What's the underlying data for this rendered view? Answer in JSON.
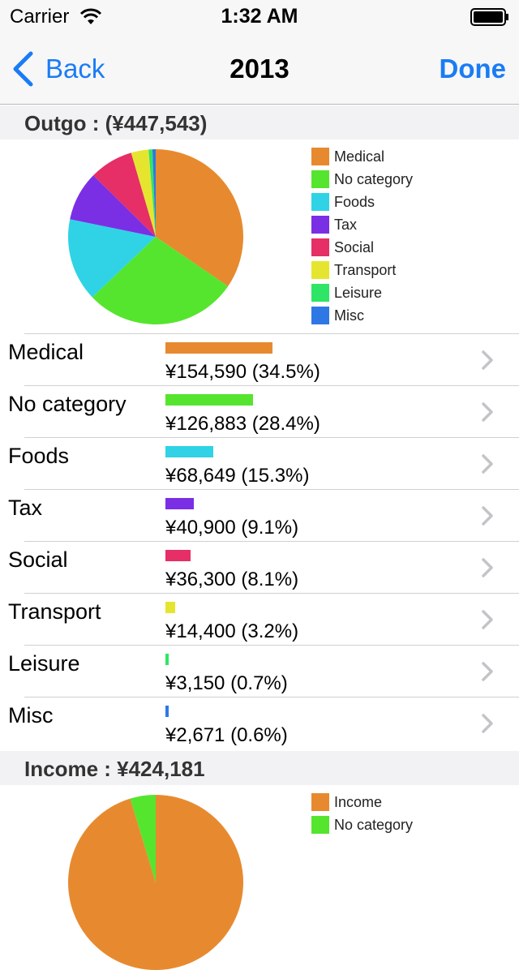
{
  "status_bar": {
    "carrier": "Carrier",
    "time": "1:32 AM"
  },
  "nav": {
    "back_label": "Back",
    "title": "2013",
    "done_label": "Done"
  },
  "outgo": {
    "header": "Outgo : (¥447,543)",
    "rows": [
      {
        "name": "Medical",
        "amount_text": "¥154,590 (34.5%)",
        "color": "#e78a2f"
      },
      {
        "name": "No category",
        "amount_text": "¥126,883 (28.4%)",
        "color": "#55e52e"
      },
      {
        "name": "Foods",
        "amount_text": "¥68,649 (15.3%)",
        "color": "#2fd3e5"
      },
      {
        "name": "Tax",
        "amount_text": "¥40,900 (9.1%)",
        "color": "#7a2fe5"
      },
      {
        "name": "Social",
        "amount_text": "¥36,300 (8.1%)",
        "color": "#e52f66"
      },
      {
        "name": "Transport",
        "amount_text": "¥14,400 (3.2%)",
        "color": "#e5e52f"
      },
      {
        "name": "Leisure",
        "amount_text": "¥3,150 (0.7%)",
        "color": "#2fe566"
      },
      {
        "name": "Misc",
        "amount_text": "¥2,671 (0.6%)",
        "color": "#2f77e5"
      }
    ]
  },
  "income": {
    "header": "Income : ¥424,181"
  },
  "chart_data": [
    {
      "type": "pie",
      "title": "",
      "categories": [
        "Medical",
        "No category",
        "Foods",
        "Tax",
        "Social",
        "Transport",
        "Leisure",
        "Misc"
      ],
      "values": [
        154590,
        126883,
        68649,
        40900,
        36300,
        14400,
        3150,
        2671
      ],
      "colors": [
        "#e78a2f",
        "#55e52e",
        "#2fd3e5",
        "#7a2fe5",
        "#e52f66",
        "#e5e52f",
        "#2fe566",
        "#2f77e5"
      ],
      "legend": "right"
    },
    {
      "type": "pie",
      "title": "",
      "categories": [
        "Income",
        "No category"
      ],
      "values": [
        95.3,
        4.7
      ],
      "colors": [
        "#e78a2f",
        "#55e52e"
      ],
      "legend": "right"
    }
  ]
}
